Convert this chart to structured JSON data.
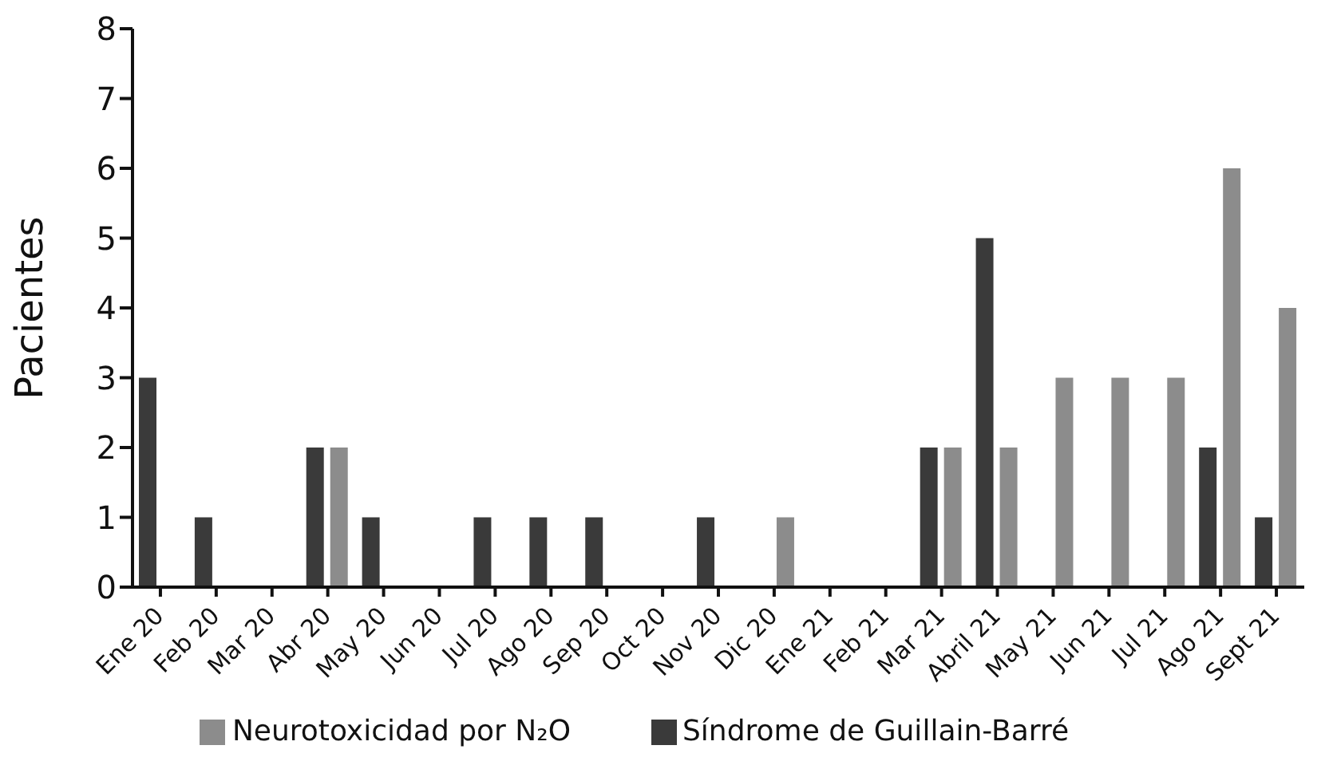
{
  "chart_data": {
    "type": "bar",
    "ylabel": "Pacientes",
    "categories": [
      "Ene 20",
      "Feb 20",
      "Mar 20",
      "Abr 20",
      "May 20",
      "Jun 20",
      "Jul 20",
      "Ago 20",
      "Sep 20",
      "Oct 20",
      "Nov 20",
      "Dic 20",
      "Ene 21",
      "Feb 21",
      "Mar 21",
      "Abril 21",
      "May 21",
      "Jun 21",
      "Jul 21",
      "Ago 21",
      "Sept 21"
    ],
    "series": [
      {
        "name": "Síndrome de Guillain-Barré",
        "color": "#3a3a3a",
        "values": [
          3,
          1,
          0,
          2,
          1,
          0,
          1,
          1,
          1,
          0,
          1,
          0,
          0,
          0,
          2,
          5,
          0,
          0,
          0,
          2,
          1
        ]
      },
      {
        "name": "Neurotoxicidad por N₂O",
        "color": "#8c8c8c",
        "values": [
          0,
          0,
          0,
          2,
          0,
          0,
          0,
          0,
          0,
          0,
          0,
          1,
          0,
          0,
          2,
          2,
          3,
          3,
          3,
          6,
          4
        ]
      }
    ],
    "ylim": [
      0,
      8
    ],
    "yticks": [
      0,
      1,
      2,
      3,
      4,
      5,
      6,
      7,
      8
    ],
    "grid": false,
    "legend": "bottom"
  }
}
